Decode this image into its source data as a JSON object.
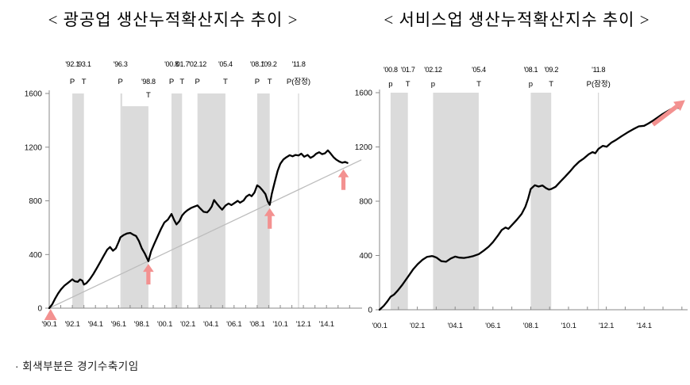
{
  "page": {
    "background": "#ffffff"
  },
  "footnote": {
    "text": "· 회색부분은 경기수축기임"
  },
  "colors": {
    "band": "#dbdbdb",
    "series": "#000000",
    "trend": "#bcbcbc",
    "refline": "#cdcdcd",
    "axis": "#8a8a8a",
    "label_text": "#111111",
    "arrow": "#f39190"
  },
  "chart_data": [
    {
      "id": "mining-manufacturing",
      "type": "line",
      "title": "< 광공업 생산누적확산지수 추이 >",
      "ylim": [
        0,
        1600
      ],
      "ylabel_values": [
        0,
        400,
        800,
        1200,
        1600
      ],
      "x_axis": {
        "start_year": 1990.083,
        "tick_interval_years": 1,
        "labels": [
          {
            "text": "'90.1",
            "year": 1990.083
          },
          {
            "text": "'92.1",
            "year": 1992.083
          },
          {
            "text": "'94.1",
            "year": 1994.083
          },
          {
            "text": "'96.1",
            "year": 1996.083
          },
          {
            "text": "'98.1",
            "year": 1998.083
          },
          {
            "text": "'00.1",
            "year": 2000.083
          },
          {
            "text": "'02.1",
            "year": 2002.083
          },
          {
            "text": "'04.1",
            "year": 2004.083
          },
          {
            "text": "'06.1",
            "year": 2006.083
          },
          {
            "text": "'08.1",
            "year": 2008.083
          },
          {
            "text": "'10.1",
            "year": 2010.083
          },
          {
            "text": "'12.1",
            "year": 2012.083
          },
          {
            "text": "'14.1",
            "year": 2014.083
          }
        ]
      },
      "recession_bands": [
        {
          "from": 1992.083,
          "to": 1993.083,
          "top": 1600
        },
        {
          "from": 1996.25,
          "to": 1996.4,
          "top": 1600
        },
        {
          "from": 1996.4,
          "to": 1998.667,
          "top": 1505
        },
        {
          "from": 2000.667,
          "to": 2001.583,
          "top": 1600
        },
        {
          "from": 2002.917,
          "to": 2005.333,
          "top": 1600
        },
        {
          "from": 2008.083,
          "to": 2009.167,
          "top": 1600
        }
      ],
      "provisional_line_year": 2011.667,
      "trend_line": {
        "from_year": 1990.083,
        "from_value": 0,
        "to_year": 2017.1,
        "to_value": 1105
      },
      "annotations": [
        {
          "date": "'92.1",
          "marker": "P",
          "year": 1992.083,
          "row": 1
        },
        {
          "date": "'93.1",
          "marker": "T",
          "year": 1993.083,
          "row": 1
        },
        {
          "date": "'96.3",
          "marker": "P",
          "year": 1996.25,
          "row": 1
        },
        {
          "date": "'98.8",
          "marker": "T",
          "year": 1998.667,
          "row": 2
        },
        {
          "date": "'00.8",
          "marker": "P",
          "year": 2000.667,
          "row": 1
        },
        {
          "date": "'01.7",
          "marker": "T",
          "year": 2001.583,
          "row": 1
        },
        {
          "date": "'02.12",
          "marker": "P",
          "year": 2002.917,
          "row": 1
        },
        {
          "date": "'05.4",
          "marker": "T",
          "year": 2005.333,
          "row": 1
        },
        {
          "date": "'08.1",
          "marker": "P",
          "year": 2008.083,
          "row": 1
        },
        {
          "date": "'09.2",
          "marker": "T",
          "year": 2009.167,
          "row": 1
        },
        {
          "date": "'11.8",
          "marker": "P(잠정)",
          "year": 2011.667,
          "row": 1
        }
      ],
      "arrows": [
        {
          "kind": "origin",
          "year": 1990.2
        },
        {
          "kind": "up",
          "year": 1998.667,
          "tip_value": 330
        },
        {
          "kind": "up",
          "year": 2009.167,
          "tip_value": 745
        },
        {
          "kind": "up",
          "year": 2015.55,
          "tip_value": 1035
        }
      ],
      "series": {
        "points": [
          [
            1990.083,
            0
          ],
          [
            1990.35,
            30
          ],
          [
            1990.6,
            72
          ],
          [
            1990.85,
            110
          ],
          [
            1991.1,
            140
          ],
          [
            1991.4,
            168
          ],
          [
            1991.7,
            188
          ],
          [
            1992.083,
            215
          ],
          [
            1992.3,
            200
          ],
          [
            1992.55,
            196
          ],
          [
            1992.75,
            214
          ],
          [
            1992.95,
            204
          ],
          [
            1993.083,
            176
          ],
          [
            1993.3,
            186
          ],
          [
            1993.6,
            216
          ],
          [
            1993.9,
            254
          ],
          [
            1994.2,
            298
          ],
          [
            1994.5,
            344
          ],
          [
            1994.8,
            390
          ],
          [
            1995.1,
            436
          ],
          [
            1995.35,
            455
          ],
          [
            1995.6,
            428
          ],
          [
            1995.85,
            446
          ],
          [
            1996.083,
            492
          ],
          [
            1996.25,
            528
          ],
          [
            1996.5,
            544
          ],
          [
            1996.8,
            556
          ],
          [
            1997.1,
            561
          ],
          [
            1997.35,
            548
          ],
          [
            1997.6,
            538
          ],
          [
            1997.85,
            500
          ],
          [
            1998.1,
            446
          ],
          [
            1998.35,
            408
          ],
          [
            1998.667,
            350
          ],
          [
            1998.9,
            424
          ],
          [
            1999.15,
            474
          ],
          [
            1999.45,
            532
          ],
          [
            1999.75,
            590
          ],
          [
            2000.05,
            638
          ],
          [
            2000.35,
            660
          ],
          [
            2000.667,
            702
          ],
          [
            2000.9,
            656
          ],
          [
            2001.1,
            624
          ],
          [
            2001.35,
            648
          ],
          [
            2001.583,
            690
          ],
          [
            2001.8,
            712
          ],
          [
            2002.05,
            730
          ],
          [
            2002.35,
            746
          ],
          [
            2002.65,
            757
          ],
          [
            2002.917,
            766
          ],
          [
            2003.15,
            744
          ],
          [
            2003.45,
            718
          ],
          [
            2003.75,
            714
          ],
          [
            2003.95,
            732
          ],
          [
            2004.15,
            758
          ],
          [
            2004.35,
            806
          ],
          [
            2004.6,
            778
          ],
          [
            2004.85,
            752
          ],
          [
            2005.05,
            734
          ],
          [
            2005.333,
            764
          ],
          [
            2005.6,
            780
          ],
          [
            2005.85,
            768
          ],
          [
            2006.1,
            782
          ],
          [
            2006.4,
            800
          ],
          [
            2006.6,
            786
          ],
          [
            2006.9,
            802
          ],
          [
            2007.15,
            832
          ],
          [
            2007.4,
            846
          ],
          [
            2007.6,
            834
          ],
          [
            2007.85,
            862
          ],
          [
            2008.083,
            916
          ],
          [
            2008.3,
            902
          ],
          [
            2008.55,
            878
          ],
          [
            2008.8,
            850
          ],
          [
            2009.0,
            796
          ],
          [
            2009.167,
            770
          ],
          [
            2009.35,
            852
          ],
          [
            2009.6,
            940
          ],
          [
            2009.85,
            1022
          ],
          [
            2010.083,
            1076
          ],
          [
            2010.35,
            1108
          ],
          [
            2010.6,
            1124
          ],
          [
            2010.9,
            1140
          ],
          [
            2011.15,
            1132
          ],
          [
            2011.4,
            1142
          ],
          [
            2011.667,
            1138
          ],
          [
            2011.9,
            1152
          ],
          [
            2012.15,
            1128
          ],
          [
            2012.45,
            1142
          ],
          [
            2012.7,
            1120
          ],
          [
            2012.95,
            1132
          ],
          [
            2013.2,
            1152
          ],
          [
            2013.45,
            1162
          ],
          [
            2013.7,
            1148
          ],
          [
            2013.95,
            1154
          ],
          [
            2014.2,
            1176
          ],
          [
            2014.45,
            1152
          ],
          [
            2014.7,
            1124
          ],
          [
            2014.95,
            1106
          ],
          [
            2015.2,
            1092
          ],
          [
            2015.45,
            1084
          ],
          [
            2015.7,
            1090
          ],
          [
            2015.9,
            1082
          ]
        ]
      }
    },
    {
      "id": "services",
      "type": "line",
      "title": "< 서비스업 생산누적확산지수 추이 >",
      "ylim": [
        0,
        1600
      ],
      "ylabel_values": [
        0,
        400,
        800,
        1200,
        1600
      ],
      "x_axis": {
        "start_year": 2000.083,
        "tick_interval_years": 1,
        "labels": [
          {
            "text": "'00.1",
            "year": 2000.083
          },
          {
            "text": "'02.1",
            "year": 2002.083
          },
          {
            "text": "'04.1",
            "year": 2004.083
          },
          {
            "text": "'06.1",
            "year": 2006.083
          },
          {
            "text": "'08.1",
            "year": 2008.083
          },
          {
            "text": "'10.1",
            "year": 2010.083
          },
          {
            "text": "'12.1",
            "year": 2012.083
          },
          {
            "text": "'14.1",
            "year": 2014.083
          }
        ]
      },
      "recession_bands": [
        {
          "from": 2000.667,
          "to": 2001.583,
          "top": 1600
        },
        {
          "from": 2002.917,
          "to": 2005.333,
          "top": 1600
        },
        {
          "from": 2008.083,
          "to": 2009.167,
          "top": 1600
        }
      ],
      "provisional_line_year": 2011.667,
      "trend_line": null,
      "annotations": [
        {
          "date": "'00.8",
          "marker": "p",
          "year": 2000.667,
          "row": 1
        },
        {
          "date": "'01.7",
          "marker": "T",
          "year": 2001.583,
          "row": 1
        },
        {
          "date": "'02.12",
          "marker": "p",
          "year": 2002.917,
          "row": 1
        },
        {
          "date": "'05.4",
          "marker": "T",
          "year": 2005.333,
          "row": 1
        },
        {
          "date": "'08.1",
          "marker": "p",
          "year": 2008.083,
          "row": 1
        },
        {
          "date": "'09.2",
          "marker": "T",
          "year": 2009.167,
          "row": 1
        },
        {
          "date": "'11.8",
          "marker": "P(잠정)",
          "year": 2011.667,
          "row": 1
        }
      ],
      "arrows": [
        {
          "kind": "diag",
          "from": [
            2014.55,
            1365
          ],
          "to": [
            2016.25,
            1545
          ]
        }
      ],
      "series": {
        "points": [
          [
            2000.083,
            0
          ],
          [
            2000.3,
            28
          ],
          [
            2000.5,
            62
          ],
          [
            2000.667,
            96
          ],
          [
            2000.85,
            112
          ],
          [
            2001.05,
            142
          ],
          [
            2001.3,
            186
          ],
          [
            2001.583,
            242
          ],
          [
            2001.85,
            296
          ],
          [
            2002.1,
            336
          ],
          [
            2002.35,
            368
          ],
          [
            2002.6,
            390
          ],
          [
            2002.85,
            396
          ],
          [
            2002.917,
            394
          ],
          [
            2003.1,
            384
          ],
          [
            2003.35,
            358
          ],
          [
            2003.6,
            354
          ],
          [
            2003.85,
            378
          ],
          [
            2004.083,
            392
          ],
          [
            2004.3,
            384
          ],
          [
            2004.55,
            382
          ],
          [
            2004.8,
            388
          ],
          [
            2005.05,
            396
          ],
          [
            2005.333,
            410
          ],
          [
            2005.6,
            436
          ],
          [
            2005.85,
            464
          ],
          [
            2006.083,
            498
          ],
          [
            2006.35,
            548
          ],
          [
            2006.55,
            588
          ],
          [
            2006.75,
            606
          ],
          [
            2006.9,
            596
          ],
          [
            2007.1,
            626
          ],
          [
            2007.35,
            664
          ],
          [
            2007.6,
            706
          ],
          [
            2007.8,
            760
          ],
          [
            2007.95,
            820
          ],
          [
            2008.083,
            890
          ],
          [
            2008.3,
            918
          ],
          [
            2008.5,
            908
          ],
          [
            2008.7,
            916
          ],
          [
            2008.9,
            896
          ],
          [
            2009.05,
            886
          ],
          [
            2009.167,
            890
          ],
          [
            2009.4,
            906
          ],
          [
            2009.65,
            944
          ],
          [
            2009.9,
            980
          ],
          [
            2010.15,
            1018
          ],
          [
            2010.4,
            1058
          ],
          [
            2010.65,
            1092
          ],
          [
            2010.9,
            1116
          ],
          [
            2011.15,
            1146
          ],
          [
            2011.35,
            1162
          ],
          [
            2011.5,
            1154
          ],
          [
            2011.667,
            1186
          ],
          [
            2011.9,
            1208
          ],
          [
            2012.1,
            1202
          ],
          [
            2012.35,
            1232
          ],
          [
            2012.6,
            1252
          ],
          [
            2012.9,
            1280
          ],
          [
            2013.2,
            1306
          ],
          [
            2013.5,
            1330
          ],
          [
            2013.8,
            1352
          ],
          [
            2014.083,
            1356
          ],
          [
            2014.3,
            1372
          ],
          [
            2014.55,
            1394
          ],
          [
            2014.8,
            1418
          ],
          [
            2015.05,
            1442
          ],
          [
            2015.3,
            1462
          ],
          [
            2015.5,
            1478
          ],
          [
            2015.65,
            1472
          ],
          [
            2015.8,
            1490
          ],
          [
            2015.92,
            1488
          ]
        ]
      }
    }
  ]
}
